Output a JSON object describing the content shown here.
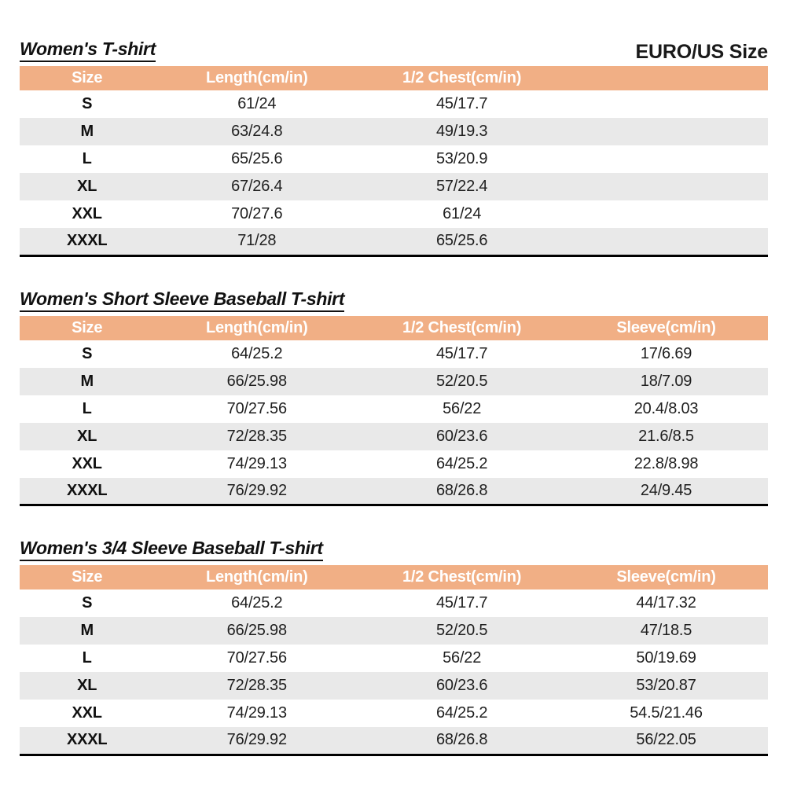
{
  "page": {
    "size_standard_label": "EURO/US Size",
    "colors": {
      "header_bg": "#F1AF85",
      "header_text": "#FFFFFF",
      "alt_row_bg": "#E9E9E9",
      "table_bottom_border": "#000000"
    }
  },
  "tables": [
    {
      "title": "Women's T-shirt",
      "columns": [
        "Size",
        "Length(cm/in)",
        "1/2 Chest(cm/in)",
        ""
      ],
      "rows": [
        [
          "S",
          "61/24",
          "45/17.7",
          ""
        ],
        [
          "M",
          "63/24.8",
          "49/19.3",
          ""
        ],
        [
          "L",
          "65/25.6",
          "53/20.9",
          ""
        ],
        [
          "XL",
          "67/26.4",
          "57/22.4",
          ""
        ],
        [
          "XXL",
          "70/27.6",
          "61/24",
          ""
        ],
        [
          "XXXL",
          "71/28",
          "65/25.6",
          ""
        ]
      ]
    },
    {
      "title": "Women's Short Sleeve Baseball T-shirt",
      "columns": [
        "Size",
        "Length(cm/in)",
        "1/2 Chest(cm/in)",
        "Sleeve(cm/in)"
      ],
      "rows": [
        [
          "S",
          "64/25.2",
          "45/17.7",
          "17/6.69"
        ],
        [
          "M",
          "66/25.98",
          "52/20.5",
          "18/7.09"
        ],
        [
          "L",
          "70/27.56",
          "56/22",
          "20.4/8.03"
        ],
        [
          "XL",
          "72/28.35",
          "60/23.6",
          "21.6/8.5"
        ],
        [
          "XXL",
          "74/29.13",
          "64/25.2",
          "22.8/8.98"
        ],
        [
          "XXXL",
          "76/29.92",
          "68/26.8",
          "24/9.45"
        ]
      ]
    },
    {
      "title": "Women's 3/4 Sleeve Baseball T-shirt",
      "columns": [
        "Size",
        "Length(cm/in)",
        "1/2 Chest(cm/in)",
        "Sleeve(cm/in)"
      ],
      "rows": [
        [
          "S",
          "64/25.2",
          "45/17.7",
          "44/17.32"
        ],
        [
          "M",
          "66/25.98",
          "52/20.5",
          "47/18.5"
        ],
        [
          "L",
          "70/27.56",
          "56/22",
          "50/19.69"
        ],
        [
          "XL",
          "72/28.35",
          "60/23.6",
          "53/20.87"
        ],
        [
          "XXL",
          "74/29.13",
          "64/25.2",
          "54.5/21.46"
        ],
        [
          "XXXL",
          "76/29.92",
          "68/26.8",
          "56/22.05"
        ]
      ]
    }
  ]
}
